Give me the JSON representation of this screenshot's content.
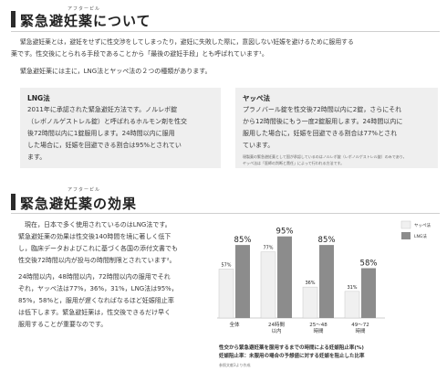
{
  "section1": {
    "ruby": "アフターピル",
    "title": "緊急避妊薬について",
    "para1_line1": "緊急避妊薬とは，避妊をせずに性交渉をしてしまったり，避妊に失敗した際に，意図しない妊娠を避けるために服用する",
    "para1_line2": "薬です。性交後にとられる手段であることから「最後の避妊手段」とも呼ばれています¹。",
    "para2": "緊急避妊薬には主に，LNG法とヤッペ法の２つの種類があります。"
  },
  "lng_box": {
    "title": "LNG法",
    "lines": [
      "2011年に承認された緊急避妊方法です。ノルレボ錠",
      "（レボノルゲストレル錠）と呼ばれるホルモン剤を性交",
      "後72時間以内に1錠服用します。24時間以内に服用",
      "した場合に，妊娠を回避できる割合は95%とされてい",
      "ます。"
    ]
  },
  "yuzpe_box": {
    "title": "ヤッペ法",
    "lines": [
      "プラノバール錠を性交後72時間以内に2錠，さらにそれ",
      "から12時間後にもう一度2錠服用します。24時間以内に",
      "服用した場合に，妊娠を回避できる割合は77%とされ",
      "ています。"
    ],
    "note_lines": [
      "現製薬の緊急避妊薬として国が承認しているのはノルレボ錠（レボノルゲストレル錠）のみであり，",
      "ヤッペ法は「医師の判断と責任」によって行われる方法です。"
    ]
  },
  "section2": {
    "ruby": "アフターピル",
    "title": "緊急避妊薬の効果",
    "lines": [
      "現在，日本で多く使用されているのはLNG法です。",
      "緊急避妊薬の効果は性交後140時間を境に著しく低下",
      "し，臨床データおよびこれに基づく各国の添付文書でも",
      "性交後72時間以内が投与の時間制限とされています²。",
      "",
      "24時間以内，48時間以内，72時間以内の服用でそれ",
      "ぞれ，ヤッペ法は77%，36%，31%，LNG法は95%，",
      "85%，58%と，服用が遅くなればなるほど妊娠阻止率",
      "は低下します。緊急避妊薬は，性交後できるだけ早く",
      "服用することが重要なのです。"
    ]
  },
  "chart_data": {
    "type": "bar",
    "categories": [
      "全体",
      "24時間\n以内",
      "25〜48\n時間",
      "49〜72\n時間"
    ],
    "series": [
      {
        "name": "ヤッペ法",
        "values": [
          57,
          77,
          36,
          31
        ],
        "color": "#f0f0f0"
      },
      {
        "name": "LNG法",
        "values": [
          85,
          95,
          85,
          58
        ],
        "color": "#8c8c8c"
      }
    ],
    "ylim": [
      0,
      100
    ],
    "legend": "top-right",
    "grid": false,
    "caption_line1": "性交から緊急避妊薬を服用するまでの時間による妊娠阻止率(%)",
    "caption_line2": "妊娠阻止率：未服用の場合の予想値に対する妊娠を阻止した比率",
    "source": "参照文献3より作成"
  },
  "colors": {
    "heading_bar": "#2b2b2b",
    "box_bg": "#efefef",
    "lng": "#8c8c8c",
    "yuzpe": "#f0f0f0"
  }
}
